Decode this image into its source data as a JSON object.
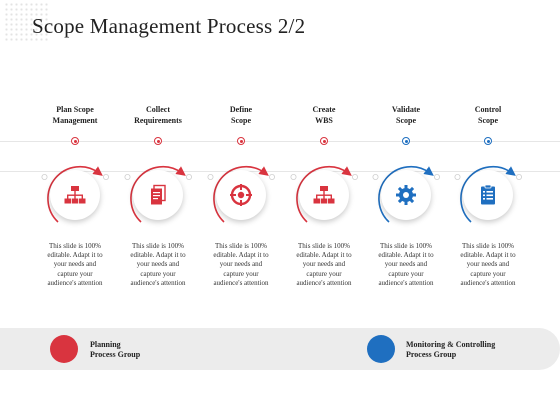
{
  "title": "Scope Management Process 2/2",
  "colors": {
    "planning": "#d9343f",
    "monitoring": "#1f6fc0"
  },
  "steps": [
    {
      "title_line1": "Plan Scope",
      "title_line2": "Management",
      "icon": "hierarchy-icon",
      "group": "planning",
      "desc": [
        "This slide is 100%",
        "editable. Adapt it to",
        "your needs and",
        "capture your",
        "audience's attention"
      ]
    },
    {
      "title_line1": "Collect",
      "title_line2": "Requirements",
      "icon": "documents-icon",
      "group": "planning",
      "desc": [
        "This slide is 100%",
        "editable. Adapt it to",
        "your needs and",
        "capture your",
        "audience's attention"
      ]
    },
    {
      "title_line1": "Define",
      "title_line2": "Scope",
      "icon": "crosshair-icon",
      "group": "planning",
      "desc": [
        "This slide is 100%",
        "editable. Adapt it to",
        "your needs and",
        "capture your",
        "audience's attention"
      ]
    },
    {
      "title_line1": "Create",
      "title_line2": "WBS",
      "icon": "hierarchy-icon",
      "group": "planning",
      "desc": [
        "This slide is 100%",
        "editable. Adapt it to",
        "your needs and",
        "capture your",
        "audience's attention"
      ]
    },
    {
      "title_line1": "Validate",
      "title_line2": "Scope",
      "icon": "gear-icon",
      "group": "monitoring",
      "desc": [
        "This slide is 100%",
        "editable. Adapt it to",
        "your needs and",
        "capture your",
        "audience's attention"
      ]
    },
    {
      "title_line1": "Control",
      "title_line2": "Scope",
      "icon": "clipboard-icon",
      "group": "monitoring",
      "desc": [
        "This slide is 100%",
        "editable. Adapt it to",
        "your needs and",
        "capture your",
        "audience's attention"
      ]
    }
  ],
  "legend": {
    "planning": {
      "line1": "Planning",
      "line2": "Process Group"
    },
    "monitoring": {
      "line1": "Monitoring & Controlling",
      "line2": "Process Group"
    }
  }
}
